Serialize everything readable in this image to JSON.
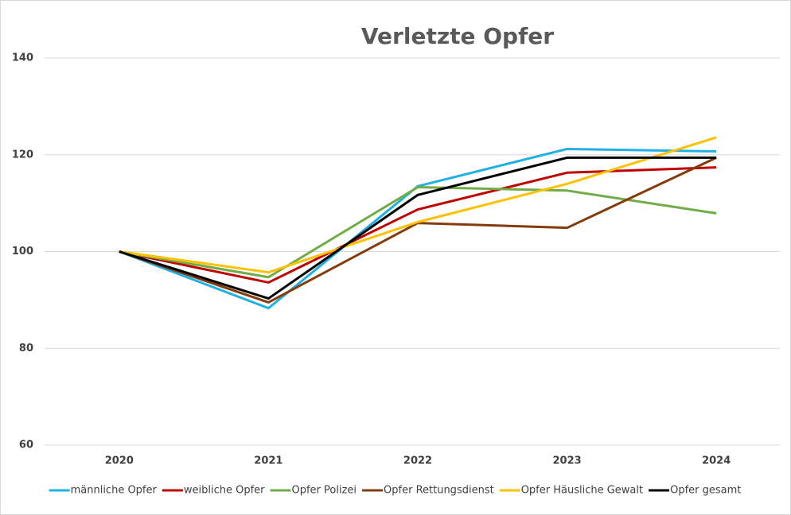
{
  "chart_data": {
    "type": "line",
    "title": "Verletzte Opfer",
    "categories": [
      "2020",
      "2021",
      "2022",
      "2023",
      "2024"
    ],
    "series": [
      {
        "name": "männliche Opfer",
        "color": "#1fb0e6",
        "values": [
          100,
          88.3,
          113.5,
          121.2,
          120.7
        ]
      },
      {
        "name": "weibliche Opfer",
        "color": "#c00000",
        "values": [
          100,
          93.6,
          108.7,
          116.3,
          117.4
        ]
      },
      {
        "name": "Opfer Polizei",
        "color": "#70ad47",
        "values": [
          100,
          94.7,
          113.3,
          112.6,
          107.9
        ]
      },
      {
        "name": "Opfer Rettungsdienst",
        "color": "#843c0c",
        "values": [
          100,
          89.5,
          105.9,
          104.9,
          119.4
        ]
      },
      {
        "name": "Opfer Häusliche Gewalt",
        "color": "#ffc000",
        "values": [
          100,
          95.7,
          106.1,
          114.0,
          123.6
        ]
      },
      {
        "name": "Opfer gesamt",
        "color": "#000000",
        "values": [
          100,
          90.3,
          111.7,
          119.4,
          119.4
        ]
      }
    ],
    "ylim": [
      60,
      140
    ],
    "yticks": [
      60,
      80,
      100,
      120,
      140
    ],
    "grid": true,
    "legend": "bottom"
  }
}
